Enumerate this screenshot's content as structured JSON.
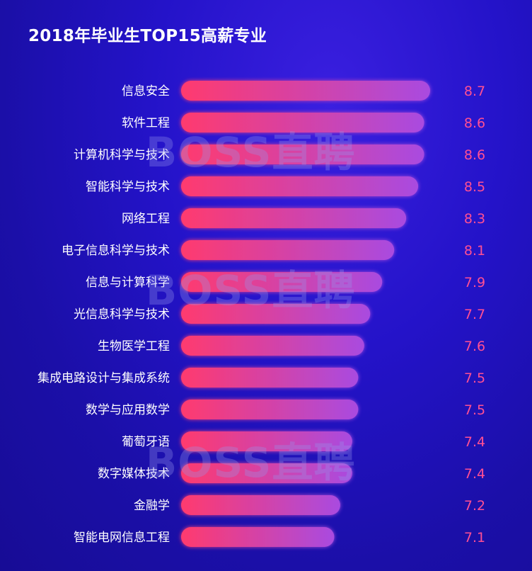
{
  "chart_data": {
    "type": "bar",
    "orientation": "horizontal",
    "title": "2018年毕业生TOP15高薪专业",
    "categories": [
      "信息安全",
      "软件工程",
      "计算机科学与技术",
      "智能科学与技术",
      "网络工程",
      "电子信息科学与技术",
      "信息与计算科学",
      "光信息科学与技术",
      "生物医学工程",
      "集成电路设计与集成系统",
      "数学与应用数学",
      "葡萄牙语",
      "数字媒体技术",
      "金融学",
      "智能电网信息工程"
    ],
    "values": [
      8.7,
      8.6,
      8.6,
      8.5,
      8.3,
      8.1,
      7.9,
      7.7,
      7.6,
      7.5,
      7.5,
      7.4,
      7.4,
      7.2,
      7.1
    ],
    "xlim": [
      0,
      8.7
    ],
    "grid": false,
    "legend": "none",
    "colors": {
      "bar_start": "#ff3a6e",
      "bar_end": "#a94be0",
      "value_text": "#ff4f93",
      "label_text": "#ffffff"
    }
  },
  "watermark": {
    "text": "BOSS直聘"
  }
}
